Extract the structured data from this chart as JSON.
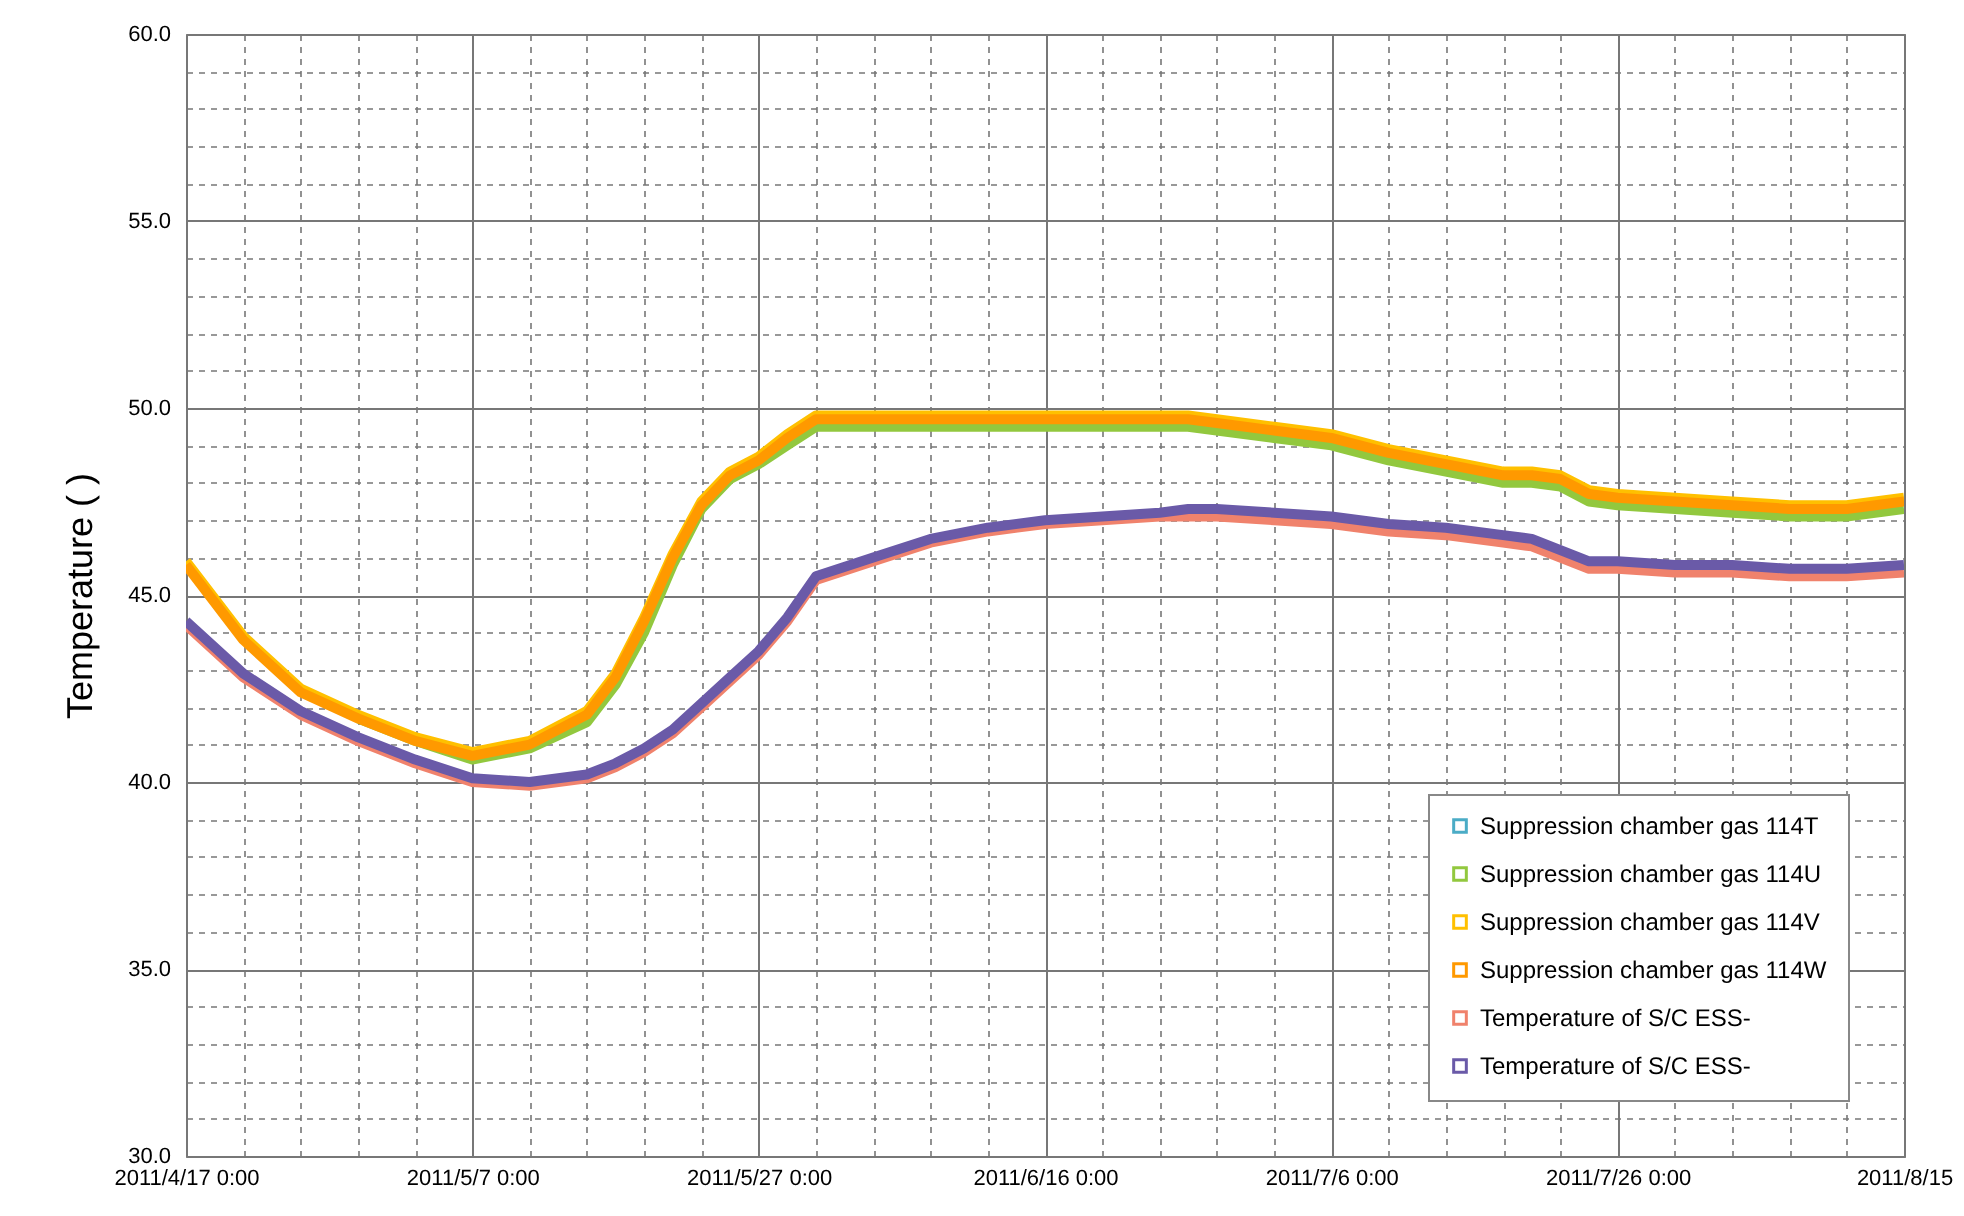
{
  "chart_data": {
    "type": "line",
    "ylabel": "Temperature (  )",
    "x": [
      "2011-04-17",
      "2011-04-21",
      "2011-04-25",
      "2011-04-29",
      "2011-05-03",
      "2011-05-07",
      "2011-05-11",
      "2011-05-15",
      "2011-05-17",
      "2011-05-19",
      "2011-05-21",
      "2011-05-23",
      "2011-05-25",
      "2011-05-27",
      "2011-05-29",
      "2011-05-31",
      "2011-06-04",
      "2011-06-08",
      "2011-06-12",
      "2011-06-16",
      "2011-06-20",
      "2011-06-24",
      "2011-06-26",
      "2011-06-28",
      "2011-07-02",
      "2011-07-06",
      "2011-07-10",
      "2011-07-14",
      "2011-07-18",
      "2011-07-20",
      "2011-07-22",
      "2011-07-24",
      "2011-07-26",
      "2011-07-30",
      "2011-08-03",
      "2011-08-07",
      "2011-08-11",
      "2011-08-15"
    ],
    "series": [
      {
        "name": "Suppression chamber gas 114T",
        "color": "#4bacc6",
        "values": [
          null,
          null,
          null,
          null,
          null,
          null,
          null,
          null,
          null,
          null,
          null,
          null,
          null,
          null,
          null,
          null,
          null,
          null,
          null,
          null,
          null,
          null,
          null,
          null,
          null,
          null,
          null,
          null,
          null,
          null,
          null,
          null,
          null,
          null,
          null,
          null,
          null,
          null
        ]
      },
      {
        "name": "Suppression chamber gas 114U",
        "color": "#92c83e",
        "values": [
          null,
          null,
          null,
          41.7,
          41.1,
          40.6,
          40.9,
          41.6,
          42.6,
          44.0,
          45.8,
          47.3,
          48.1,
          48.5,
          49.0,
          49.5,
          49.5,
          49.5,
          49.5,
          49.5,
          49.5,
          49.5,
          49.5,
          49.4,
          49.2,
          49.0,
          48.6,
          48.3,
          48.0,
          48.0,
          47.9,
          47.5,
          47.4,
          47.3,
          47.2,
          47.1,
          47.1,
          47.3
        ]
      },
      {
        "name": "Suppression chamber gas 114V",
        "color": "#ffc000",
        "values": [
          45.9,
          43.9,
          42.5,
          41.8,
          41.2,
          40.8,
          41.1,
          41.9,
          42.9,
          44.4,
          46.1,
          47.5,
          48.3,
          48.7,
          49.3,
          49.8,
          49.8,
          49.8,
          49.8,
          49.8,
          49.8,
          49.8,
          49.8,
          49.7,
          49.5,
          49.3,
          48.9,
          48.6,
          48.3,
          48.3,
          48.2,
          47.8,
          47.7,
          47.6,
          47.5,
          47.4,
          47.4,
          47.6
        ]
      },
      {
        "name": "Suppression chamber gas 114W",
        "color": "#ff9900",
        "values": [
          45.8,
          43.8,
          42.4,
          41.7,
          41.1,
          40.7,
          41.0,
          41.8,
          42.8,
          44.3,
          46.0,
          47.4,
          48.2,
          48.6,
          49.2,
          49.7,
          49.7,
          49.7,
          49.7,
          49.7,
          49.7,
          49.7,
          49.7,
          49.6,
          49.4,
          49.2,
          48.8,
          48.5,
          48.2,
          48.2,
          48.1,
          47.7,
          47.6,
          47.5,
          47.4,
          47.3,
          47.3,
          47.5
        ]
      },
      {
        "name": "Temperature of S/C ESS-",
        "color": "#f0826c",
        "values": [
          44.2,
          42.8,
          41.8,
          41.1,
          40.5,
          40.0,
          39.9,
          40.1,
          40.4,
          40.8,
          41.3,
          42.0,
          42.7,
          43.4,
          44.3,
          45.4,
          45.9,
          46.4,
          46.7,
          46.9,
          47.0,
          47.1,
          47.1,
          47.1,
          47.0,
          46.9,
          46.7,
          46.6,
          46.4,
          46.3,
          46.0,
          45.7,
          45.7,
          45.6,
          45.6,
          45.5,
          45.5,
          45.6
        ]
      },
      {
        "name": "Temperature of S/C ESS-",
        "color": "#6a5aa8",
        "values": [
          44.3,
          42.9,
          41.9,
          41.2,
          40.6,
          40.1,
          40.0,
          40.2,
          40.5,
          40.9,
          41.4,
          42.1,
          42.8,
          43.5,
          44.4,
          45.5,
          46.0,
          46.5,
          46.8,
          47.0,
          47.1,
          47.2,
          47.3,
          47.3,
          47.2,
          47.1,
          46.9,
          46.8,
          46.6,
          46.5,
          46.2,
          45.9,
          45.9,
          45.8,
          45.8,
          45.7,
          45.7,
          45.8
        ]
      }
    ],
    "xlim": [
      "2011-04-17",
      "2011-08-15"
    ],
    "xticks": [
      {
        "value": "2011-04-17",
        "label": "2011/4/17 0:00"
      },
      {
        "value": "2011-04-21",
        "label": null
      },
      {
        "value": "2011-04-25",
        "label": null
      },
      {
        "value": "2011-04-29",
        "label": null
      },
      {
        "value": "2011-05-03",
        "label": null
      },
      {
        "value": "2011-05-07",
        "label": "2011/5/7 0:00"
      },
      {
        "value": "2011-05-11",
        "label": null
      },
      {
        "value": "2011-05-15",
        "label": null
      },
      {
        "value": "2011-05-19",
        "label": null
      },
      {
        "value": "2011-05-23",
        "label": null
      },
      {
        "value": "2011-05-27",
        "label": "2011/5/27 0:00"
      },
      {
        "value": "2011-05-31",
        "label": null
      },
      {
        "value": "2011-06-04",
        "label": null
      },
      {
        "value": "2011-06-08",
        "label": null
      },
      {
        "value": "2011-06-12",
        "label": null
      },
      {
        "value": "2011-06-16",
        "label": "2011/6/16 0:00"
      },
      {
        "value": "2011-06-20",
        "label": null
      },
      {
        "value": "2011-06-24",
        "label": null
      },
      {
        "value": "2011-06-28",
        "label": null
      },
      {
        "value": "2011-07-02",
        "label": null
      },
      {
        "value": "2011-07-06",
        "label": "2011/7/6 0:00"
      },
      {
        "value": "2011-07-10",
        "label": null
      },
      {
        "value": "2011-07-14",
        "label": null
      },
      {
        "value": "2011-07-18",
        "label": null
      },
      {
        "value": "2011-07-22",
        "label": null
      },
      {
        "value": "2011-07-26",
        "label": "2011/7/26 0:00"
      },
      {
        "value": "2011-07-30",
        "label": null
      },
      {
        "value": "2011-08-03",
        "label": null
      },
      {
        "value": "2011-08-07",
        "label": null
      },
      {
        "value": "2011-08-11",
        "label": null
      },
      {
        "value": "2011-08-15",
        "label": "2011/8/15"
      }
    ],
    "ylim": [
      30,
      60
    ],
    "yticks": [
      {
        "value": 30,
        "label": "30.0"
      },
      {
        "value": 31,
        "label": null
      },
      {
        "value": 32,
        "label": null
      },
      {
        "value": 33,
        "label": null
      },
      {
        "value": 34,
        "label": null
      },
      {
        "value": 35,
        "label": "35.0"
      },
      {
        "value": 36,
        "label": null
      },
      {
        "value": 37,
        "label": null
      },
      {
        "value": 38,
        "label": null
      },
      {
        "value": 39,
        "label": null
      },
      {
        "value": 40,
        "label": "40.0"
      },
      {
        "value": 41,
        "label": null
      },
      {
        "value": 42,
        "label": null
      },
      {
        "value": 43,
        "label": null
      },
      {
        "value": 44,
        "label": null
      },
      {
        "value": 45,
        "label": "45.0"
      },
      {
        "value": 46,
        "label": null
      },
      {
        "value": 47,
        "label": null
      },
      {
        "value": 48,
        "label": null
      },
      {
        "value": 49,
        "label": null
      },
      {
        "value": 50,
        "label": "50.0"
      },
      {
        "value": 51,
        "label": null
      },
      {
        "value": 52,
        "label": null
      },
      {
        "value": 53,
        "label": null
      },
      {
        "value": 54,
        "label": null
      },
      {
        "value": 55,
        "label": "55.0"
      },
      {
        "value": 56,
        "label": null
      },
      {
        "value": 57,
        "label": null
      },
      {
        "value": 58,
        "label": null
      },
      {
        "value": 59,
        "label": null
      },
      {
        "value": 60,
        "label": "60.0"
      }
    ],
    "grid": true,
    "legend": "bottom right"
  }
}
